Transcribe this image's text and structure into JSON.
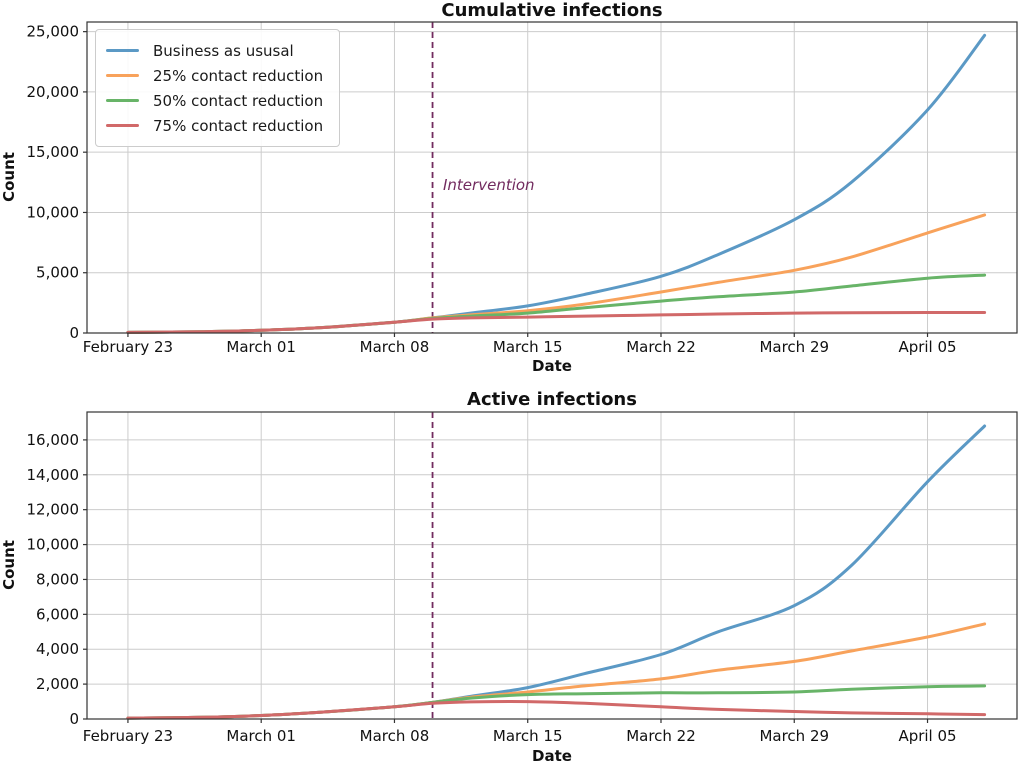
{
  "style": {
    "background": "#ffffff",
    "grid_color": "#cccccc",
    "spine_color": "#333333",
    "tick_text_color": "#111111",
    "intervention_color": "#722b5f"
  },
  "chart_data": [
    {
      "type": "line",
      "title": "Cumulative infections",
      "xlabel": "Date",
      "ylabel": "Count",
      "grid": true,
      "legend_position": "upper-left",
      "x_unit": "days since February 23",
      "xlim_days": [
        -2.15,
        46.7
      ],
      "ylim": [
        0,
        25800
      ],
      "y_ticks": [
        0,
        5000,
        10000,
        15000,
        20000,
        25000
      ],
      "x_tick_days": [
        0,
        7,
        14,
        21,
        28,
        35,
        42
      ],
      "x_tick_labels": [
        "February 23",
        "March 01",
        "March 08",
        "March 15",
        "March 22",
        "March 29",
        "April 05"
      ],
      "intervention": {
        "day": 16,
        "label": "Intervention",
        "color": "#722b5f",
        "show_label": true
      },
      "legend": {
        "items": [
          {
            "label": "Business as ususal",
            "color": "#5b99c5"
          },
          {
            "label": "25% contact reduction",
            "color": "#f8a25b"
          },
          {
            "label": "50% contact reduction",
            "color": "#68b468"
          },
          {
            "label": "75% contact reduction",
            "color": "#d16969"
          }
        ]
      },
      "series": [
        {
          "name": "Business as ususal",
          "color": "#5b99c5",
          "days": [
            0,
            4,
            7,
            10,
            14,
            16,
            18,
            21,
            24,
            28,
            31,
            35,
            38,
            42,
            45
          ],
          "values": [
            50,
            110,
            220,
            430,
            900,
            1250,
            1650,
            2250,
            3200,
            4700,
            6500,
            9400,
            12500,
            18500,
            24700
          ]
        },
        {
          "name": "25% contact reduction",
          "color": "#f8a25b",
          "days": [
            0,
            4,
            7,
            10,
            14,
            16,
            18,
            21,
            24,
            28,
            31,
            35,
            38,
            42,
            45
          ],
          "values": [
            50,
            110,
            220,
            430,
            900,
            1250,
            1500,
            1850,
            2400,
            3400,
            4200,
            5200,
            6300,
            8300,
            9800
          ]
        },
        {
          "name": "50% contact reduction",
          "color": "#68b468",
          "days": [
            0,
            4,
            7,
            10,
            14,
            16,
            18,
            21,
            24,
            28,
            31,
            35,
            38,
            42,
            45
          ],
          "values": [
            50,
            110,
            220,
            430,
            900,
            1200,
            1400,
            1650,
            2100,
            2650,
            3000,
            3400,
            3900,
            4550,
            4800
          ]
        },
        {
          "name": "75% contact reduction",
          "color": "#d16969",
          "days": [
            0,
            4,
            7,
            10,
            14,
            16,
            18,
            21,
            24,
            28,
            31,
            35,
            38,
            42,
            45
          ],
          "values": [
            50,
            110,
            220,
            430,
            900,
            1150,
            1250,
            1320,
            1400,
            1500,
            1580,
            1650,
            1680,
            1700,
            1700
          ]
        }
      ]
    },
    {
      "type": "line",
      "title": "Active infections",
      "xlabel": "Date",
      "ylabel": "Count",
      "grid": true,
      "x_unit": "days since February 23",
      "xlim_days": [
        -2.15,
        46.7
      ],
      "ylim": [
        0,
        17600
      ],
      "y_ticks": [
        0,
        2000,
        4000,
        6000,
        8000,
        10000,
        12000,
        14000,
        16000
      ],
      "x_tick_days": [
        0,
        7,
        14,
        21,
        28,
        35,
        42
      ],
      "x_tick_labels": [
        "February 23",
        "March 01",
        "March 08",
        "March 15",
        "March 22",
        "March 29",
        "April 05"
      ],
      "intervention": {
        "day": 16,
        "label": "",
        "color": "#722b5f",
        "show_label": false
      },
      "series": [
        {
          "name": "Business as ususal",
          "color": "#5b99c5",
          "days": [
            0,
            4,
            7,
            10,
            14,
            16,
            18,
            21,
            24,
            28,
            31,
            35,
            38,
            42,
            45
          ],
          "values": [
            50,
            100,
            200,
            380,
            700,
            950,
            1300,
            1800,
            2600,
            3700,
            5000,
            6500,
            8800,
            13600,
            16800
          ]
        },
        {
          "name": "25% contact reduction",
          "color": "#f8a25b",
          "days": [
            0,
            4,
            7,
            10,
            14,
            16,
            18,
            21,
            24,
            28,
            31,
            35,
            38,
            42,
            45
          ],
          "values": [
            50,
            100,
            200,
            380,
            700,
            950,
            1250,
            1550,
            1900,
            2300,
            2800,
            3300,
            3900,
            4700,
            5450
          ]
        },
        {
          "name": "50% contact reduction",
          "color": "#68b468",
          "days": [
            0,
            4,
            7,
            10,
            14,
            16,
            18,
            21,
            24,
            28,
            31,
            35,
            38,
            42,
            45
          ],
          "values": [
            50,
            100,
            200,
            380,
            700,
            950,
            1200,
            1400,
            1450,
            1500,
            1500,
            1550,
            1700,
            1850,
            1900
          ]
        },
        {
          "name": "75% contact reduction",
          "color": "#d16969",
          "days": [
            0,
            4,
            7,
            10,
            14,
            16,
            18,
            21,
            24,
            28,
            31,
            35,
            38,
            42,
            45
          ],
          "values": [
            50,
            100,
            200,
            380,
            700,
            900,
            980,
            1000,
            900,
            700,
            550,
            430,
            350,
            300,
            250
          ]
        }
      ]
    }
  ]
}
